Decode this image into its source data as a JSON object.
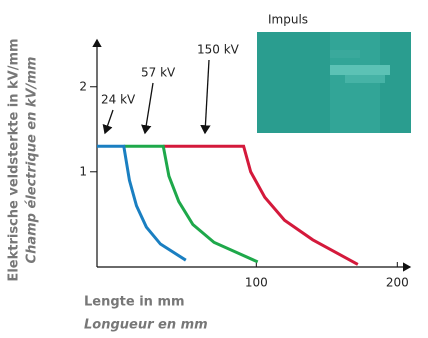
{
  "chart_data": {
    "type": "line",
    "inset_label": "Impuls",
    "y_label": [
      "Elektrische veldsterkte in kV/mm",
      "Champ électrique en kV/mm"
    ],
    "x_label": [
      "Lengte in mm",
      "Longueur en mm"
    ],
    "xlim": [
      -13,
      209
    ],
    "ylim": [
      -0.12,
      2.55
    ],
    "xticks": [
      100,
      200
    ],
    "yticks": [
      1,
      2
    ],
    "annotations": [
      "24 kV",
      "57 kV",
      "150 kV"
    ],
    "series": [
      {
        "name": "150 kV",
        "color": "#d4193b",
        "x": [
          34,
          91,
          96,
          106,
          120,
          140,
          172
        ],
        "values": [
          1.3,
          1.3,
          1.0,
          0.7,
          0.43,
          0.2,
          -0.09
        ]
      },
      {
        "name": "57 kV",
        "color": "#1ea84a",
        "x": [
          6,
          34,
          38,
          45,
          55,
          70,
          101
        ],
        "values": [
          1.3,
          1.3,
          0.95,
          0.65,
          0.38,
          0.17,
          -0.06
        ]
      },
      {
        "name": "24 kV",
        "color": "#1a7fc1",
        "x": [
          -13,
          6,
          10,
          15,
          22,
          32,
          50
        ],
        "values": [
          1.3,
          1.3,
          0.9,
          0.6,
          0.35,
          0.15,
          -0.04
        ]
      }
    ]
  }
}
